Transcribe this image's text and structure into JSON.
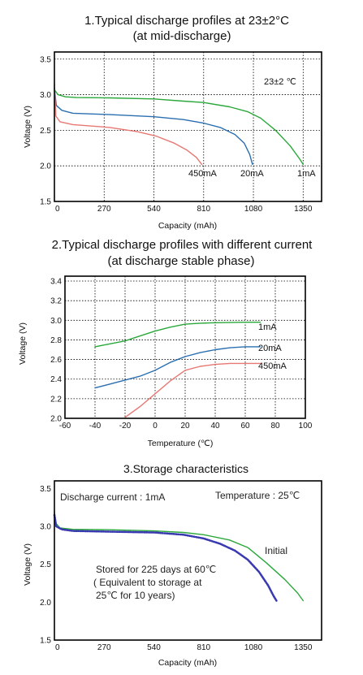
{
  "chart_data": [
    {
      "type": "line",
      "title": "1.Typical discharge profiles at 23±2°C",
      "subtitle": "(at mid-discharge)",
      "xlabel": "Capacity (mAh)",
      "ylabel": "Voltage (V)",
      "xlim": [
        0,
        1450
      ],
      "ylim": [
        1.5,
        3.6
      ],
      "x_ticks": [
        "0",
        "270",
        "540",
        "810",
        "1080",
        "1350"
      ],
      "y_ticks": [
        "1.5",
        "2.0",
        "2.5",
        "3.0",
        "3.5"
      ],
      "grid": true,
      "annotation": "23±2 ℃",
      "series": [
        {
          "name": "1mA",
          "color": "#2aa83a",
          "points": [
            [
              0,
              3.07
            ],
            [
              20,
              3.0
            ],
            [
              60,
              2.97
            ],
            [
              120,
              2.96
            ],
            [
              300,
              2.955
            ],
            [
              540,
              2.94
            ],
            [
              700,
              2.91
            ],
            [
              810,
              2.89
            ],
            [
              950,
              2.83
            ],
            [
              1050,
              2.76
            ],
            [
              1120,
              2.67
            ],
            [
              1200,
              2.5
            ],
            [
              1280,
              2.28
            ],
            [
              1330,
              2.1
            ],
            [
              1350,
              2.02
            ]
          ]
        },
        {
          "name": "20mA",
          "color": "#2a6fb0",
          "points": [
            [
              0,
              3.1
            ],
            [
              10,
              2.85
            ],
            [
              40,
              2.78
            ],
            [
              100,
              2.74
            ],
            [
              300,
              2.72
            ],
            [
              540,
              2.69
            ],
            [
              700,
              2.65
            ],
            [
              810,
              2.6
            ],
            [
              900,
              2.54
            ],
            [
              980,
              2.44
            ],
            [
              1030,
              2.32
            ],
            [
              1060,
              2.16
            ],
            [
              1075,
              2.02
            ]
          ]
        },
        {
          "name": "450mA",
          "color": "#e77873",
          "points": [
            [
              0,
              3.15
            ],
            [
              8,
              2.7
            ],
            [
              30,
              2.62
            ],
            [
              100,
              2.58
            ],
            [
              300,
              2.54
            ],
            [
              450,
              2.48
            ],
            [
              550,
              2.42
            ],
            [
              650,
              2.32
            ],
            [
              720,
              2.22
            ],
            [
              770,
              2.12
            ],
            [
              800,
              2.02
            ]
          ]
        }
      ]
    },
    {
      "type": "line",
      "title": "2.Typical discharge profiles with different current",
      "subtitle": "(at discharge stable phase)",
      "xlabel": "Temperature (℃)",
      "ylabel": "Voltage (V)",
      "xlim": [
        -60,
        100
      ],
      "ylim": [
        2.0,
        3.45
      ],
      "x_ticks": [
        "-60",
        "-40",
        "-20",
        "0",
        "20",
        "40",
        "60",
        "80",
        "100"
      ],
      "y_ticks": [
        "2.0",
        "2.2",
        "2.4",
        "2.6",
        "2.8",
        "3.0",
        "3.2",
        "3.4"
      ],
      "grid": true,
      "series": [
        {
          "name": "1mA",
          "color": "#2aa83a",
          "points": [
            [
              -40,
              2.73
            ],
            [
              -30,
              2.76
            ],
            [
              -20,
              2.79
            ],
            [
              -10,
              2.84
            ],
            [
              0,
              2.89
            ],
            [
              10,
              2.93
            ],
            [
              20,
              2.96
            ],
            [
              30,
              2.97
            ],
            [
              40,
              2.975
            ],
            [
              60,
              2.98
            ],
            [
              70,
              2.98
            ]
          ]
        },
        {
          "name": "20mA",
          "color": "#2a6fb0",
          "points": [
            [
              -40,
              2.31
            ],
            [
              -30,
              2.35
            ],
            [
              -20,
              2.39
            ],
            [
              -10,
              2.43
            ],
            [
              0,
              2.49
            ],
            [
              10,
              2.57
            ],
            [
              20,
              2.63
            ],
            [
              30,
              2.67
            ],
            [
              40,
              2.7
            ],
            [
              50,
              2.72
            ],
            [
              60,
              2.73
            ],
            [
              70,
              2.73
            ]
          ]
        },
        {
          "name": "450mA",
          "color": "#e77873",
          "points": [
            [
              -20,
              2.01
            ],
            [
              -10,
              2.12
            ],
            [
              0,
              2.25
            ],
            [
              10,
              2.38
            ],
            [
              20,
              2.49
            ],
            [
              30,
              2.53
            ],
            [
              40,
              2.55
            ],
            [
              50,
              2.56
            ],
            [
              60,
              2.56
            ],
            [
              70,
              2.56
            ]
          ]
        }
      ]
    },
    {
      "type": "line",
      "title": "3.Storage characteristics",
      "xlabel": "Capacity (mAh)",
      "ylabel": "Voltage (V)",
      "xlim": [
        0,
        1450
      ],
      "ylim": [
        1.5,
        3.6
      ],
      "x_ticks": [
        "0",
        "270",
        "540",
        "810",
        "1080",
        "1350"
      ],
      "y_ticks": [
        "1.5",
        "2.0",
        "2.5",
        "3.0",
        "3.5"
      ],
      "grid": false,
      "annotations": {
        "current": "Discharge current : 1mA",
        "temperature": "Temperature : 25℃",
        "stored_line1": "Stored for 225 days at 60℃",
        "stored_line2": "( Equivalent to storage at",
        "stored_line3": "25℃ for 10 years)"
      },
      "series": [
        {
          "name": "Initial",
          "color": "#2aa83a",
          "points": [
            [
              0,
              3.2
            ],
            [
              5,
              3.05
            ],
            [
              30,
              2.98
            ],
            [
              100,
              2.96
            ],
            [
              300,
              2.955
            ],
            [
              540,
              2.94
            ],
            [
              700,
              2.92
            ],
            [
              810,
              2.89
            ],
            [
              950,
              2.82
            ],
            [
              1050,
              2.72
            ],
            [
              1150,
              2.52
            ],
            [
              1250,
              2.3
            ],
            [
              1320,
              2.12
            ],
            [
              1350,
              2.02
            ]
          ]
        },
        {
          "name": "Stored",
          "color": "#3a3ab0",
          "points": [
            [
              0,
              3.15
            ],
            [
              10,
              3.0
            ],
            [
              40,
              2.96
            ],
            [
              100,
              2.94
            ],
            [
              300,
              2.93
            ],
            [
              540,
              2.92
            ],
            [
              700,
              2.89
            ],
            [
              810,
              2.84
            ],
            [
              900,
              2.77
            ],
            [
              980,
              2.68
            ],
            [
              1050,
              2.56
            ],
            [
              1110,
              2.4
            ],
            [
              1160,
              2.22
            ],
            [
              1190,
              2.08
            ],
            [
              1205,
              2.02
            ]
          ]
        }
      ]
    }
  ],
  "labels": {
    "c1_1mA": "1mA",
    "c1_20mA": "20mA",
    "c1_450mA": "450mA",
    "c2_1mA": "1mA",
    "c2_20mA": "20mA",
    "c2_450mA": "450mA",
    "c3_initial": "Initial"
  }
}
